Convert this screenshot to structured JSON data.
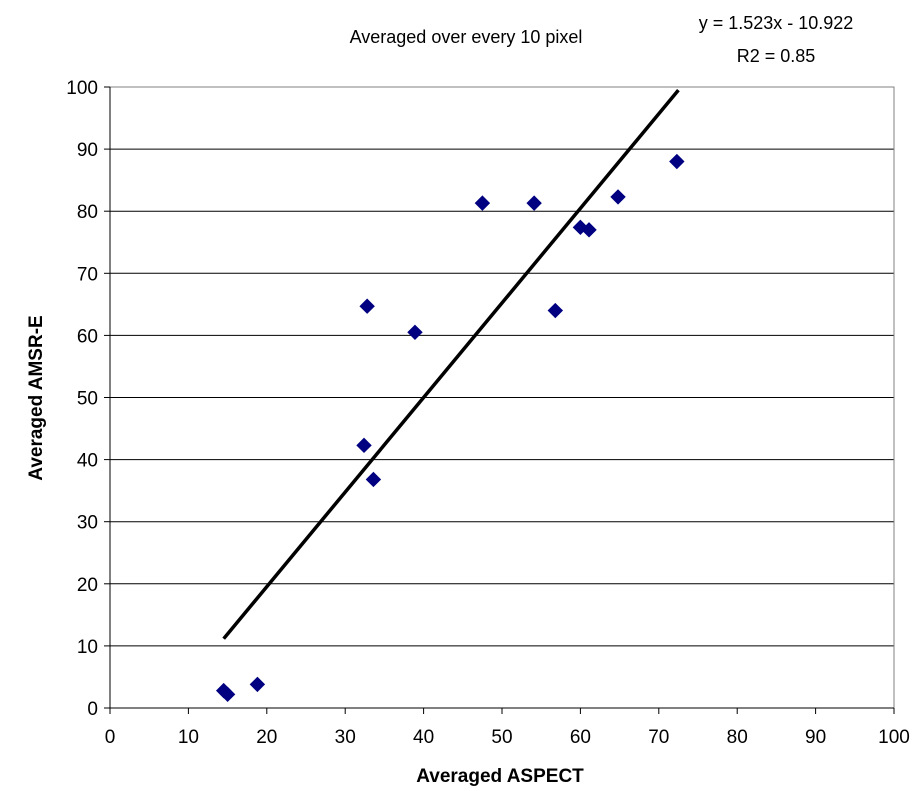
{
  "chart_data": {
    "type": "scatter",
    "title": "Averaged over every 10 pixel",
    "xlabel": "Averaged ASPECT",
    "ylabel": "Averaged AMSR-E",
    "xlim": [
      0,
      100
    ],
    "ylim": [
      0,
      100
    ],
    "x_ticks": [
      0,
      10,
      20,
      30,
      40,
      50,
      60,
      70,
      80,
      90,
      100
    ],
    "y_ticks": [
      0,
      10,
      20,
      30,
      40,
      50,
      60,
      70,
      80,
      90,
      100
    ],
    "grid": "horizontal",
    "legend": "none",
    "annotations": [
      "y = 1.523x - 10.922",
      "R2 = 0.85"
    ],
    "trendline": {
      "slope": 1.523,
      "intercept": -10.922,
      "x_range": [
        14.5,
        72.5
      ],
      "color": "#000000"
    },
    "point_color": "#000080",
    "points": [
      {
        "x": 14.5,
        "y": 2.8
      },
      {
        "x": 15.0,
        "y": 2.2
      },
      {
        "x": 18.8,
        "y": 3.8
      },
      {
        "x": 32.4,
        "y": 42.3
      },
      {
        "x": 32.8,
        "y": 64.7
      },
      {
        "x": 33.6,
        "y": 36.8
      },
      {
        "x": 38.9,
        "y": 60.5
      },
      {
        "x": 47.5,
        "y": 81.3
      },
      {
        "x": 54.1,
        "y": 81.3
      },
      {
        "x": 56.8,
        "y": 64.0
      },
      {
        "x": 60.0,
        "y": 77.4
      },
      {
        "x": 61.1,
        "y": 77.0
      },
      {
        "x": 64.8,
        "y": 82.3
      },
      {
        "x": 72.3,
        "y": 88.0
      }
    ]
  }
}
